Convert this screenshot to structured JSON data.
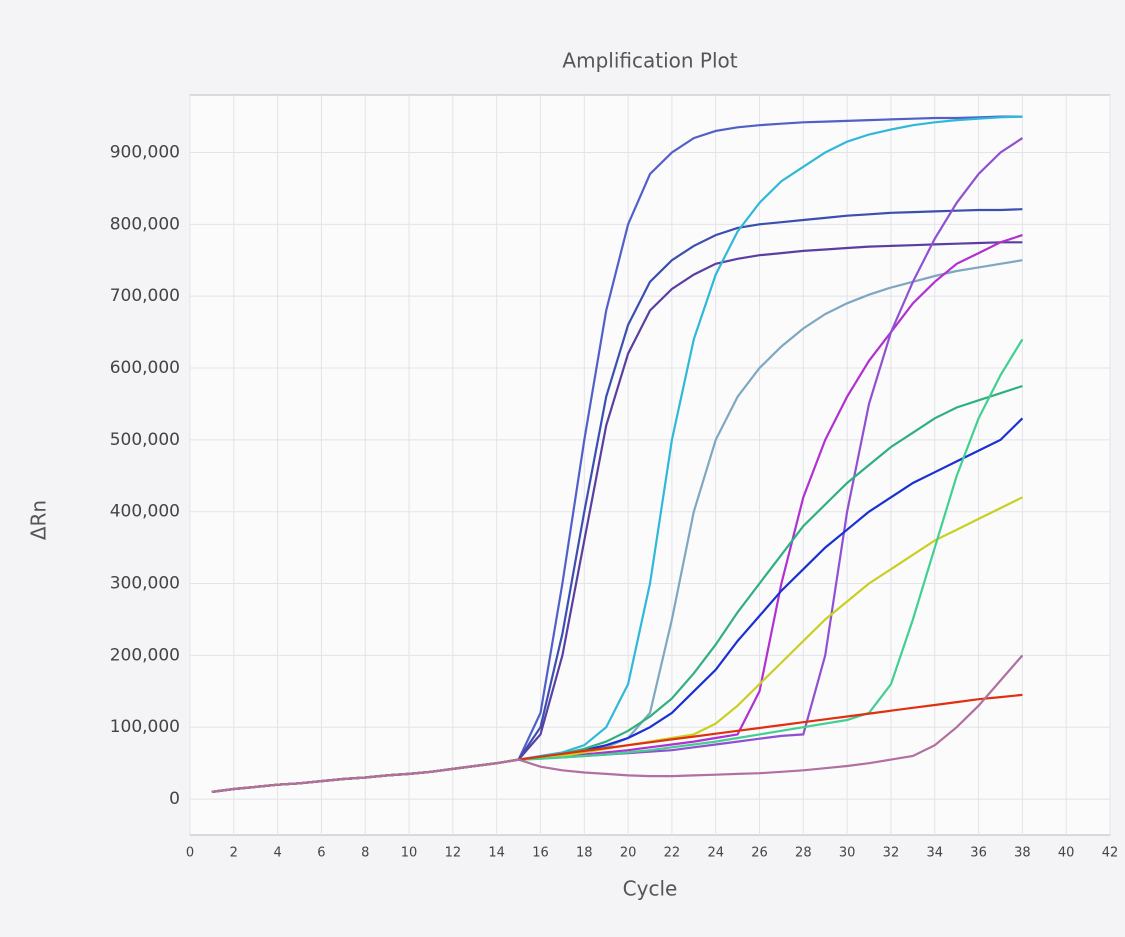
{
  "chart_data": {
    "type": "line",
    "title": "Amplification Plot",
    "x_label": "Cycle",
    "y_label": "ΔRn",
    "xlim": [
      0,
      42
    ],
    "xticks": [
      0,
      2,
      4,
      6,
      8,
      10,
      12,
      14,
      16,
      18,
      20,
      22,
      24,
      26,
      28,
      30,
      32,
      34,
      36,
      38,
      40,
      42
    ],
    "ylim": [
      -50000,
      980000
    ],
    "yticks": [
      {
        "value": 0,
        "label": "0"
      },
      {
        "value": 100000,
        "label": "100,000"
      },
      {
        "value": 200000,
        "label": "200,000"
      },
      {
        "value": 300000,
        "label": "300,000"
      },
      {
        "value": 400000,
        "label": "400,000"
      },
      {
        "value": 500000,
        "label": "500,000"
      },
      {
        "value": 600000,
        "label": "600,000"
      },
      {
        "value": 700000,
        "label": "700,000"
      },
      {
        "value": 800000,
        "label": "800,000"
      },
      {
        "value": 900000,
        "label": "900,000"
      }
    ],
    "grid": true,
    "x": [
      1,
      2,
      3,
      4,
      5,
      6,
      7,
      8,
      9,
      10,
      11,
      12,
      13,
      14,
      15,
      16,
      17,
      18,
      19,
      20,
      21,
      22,
      23,
      24,
      25,
      26,
      27,
      28,
      29,
      30,
      31,
      32,
      33,
      34,
      35,
      36,
      37,
      38
    ],
    "series": [
      {
        "color": "#5060c8",
        "values": [
          10000,
          14000,
          17000,
          20000,
          22000,
          25000,
          28000,
          30000,
          33000,
          35000,
          38000,
          42000,
          46000,
          50000,
          55000,
          120000,
          300000,
          500000,
          680000,
          800000,
          870000,
          900000,
          920000,
          930000,
          935000,
          938000,
          940000,
          942000,
          943000,
          944000,
          945000,
          946000,
          947000,
          948000,
          948000,
          949000,
          950000,
          950000
        ]
      },
      {
        "color": "#3a4fb0",
        "values": [
          10000,
          14000,
          17000,
          20000,
          22000,
          25000,
          28000,
          30000,
          33000,
          35000,
          38000,
          42000,
          46000,
          50000,
          55000,
          100000,
          230000,
          400000,
          560000,
          660000,
          720000,
          750000,
          770000,
          785000,
          795000,
          800000,
          803000,
          806000,
          809000,
          812000,
          814000,
          816000,
          817000,
          818000,
          819000,
          820000,
          820000,
          821000
        ]
      },
      {
        "color": "#5a3fa0",
        "values": [
          10000,
          14000,
          17000,
          20000,
          22000,
          25000,
          28000,
          30000,
          33000,
          35000,
          38000,
          42000,
          46000,
          50000,
          55000,
          90000,
          200000,
          360000,
          520000,
          620000,
          680000,
          710000,
          730000,
          745000,
          752000,
          757000,
          760000,
          763000,
          765000,
          767000,
          769000,
          770000,
          771000,
          772000,
          773000,
          774000,
          775000,
          775000
        ]
      },
      {
        "color": "#30b8d8",
        "values": [
          10000,
          14000,
          17000,
          20000,
          22000,
          25000,
          28000,
          30000,
          33000,
          35000,
          38000,
          42000,
          46000,
          50000,
          55000,
          60000,
          65000,
          75000,
          100000,
          160000,
          300000,
          500000,
          640000,
          730000,
          790000,
          830000,
          860000,
          880000,
          900000,
          915000,
          925000,
          932000,
          938000,
          942000,
          945000,
          947000,
          949000,
          950000
        ]
      },
      {
        "color": "#7fa8c0",
        "values": [
          10000,
          14000,
          17000,
          20000,
          22000,
          25000,
          28000,
          30000,
          33000,
          35000,
          38000,
          42000,
          46000,
          50000,
          55000,
          58000,
          62000,
          66000,
          72000,
          85000,
          120000,
          250000,
          400000,
          500000,
          560000,
          600000,
          630000,
          655000,
          675000,
          690000,
          702000,
          712000,
          720000,
          728000,
          735000,
          740000,
          745000,
          750000
        ]
      },
      {
        "color": "#b030d0",
        "values": [
          10000,
          14000,
          17000,
          20000,
          22000,
          25000,
          28000,
          30000,
          33000,
          35000,
          38000,
          42000,
          46000,
          50000,
          55000,
          57000,
          60000,
          62000,
          65000,
          68000,
          72000,
          76000,
          80000,
          85000,
          90000,
          150000,
          300000,
          420000,
          500000,
          560000,
          610000,
          650000,
          690000,
          720000,
          745000,
          760000,
          775000,
          785000
        ]
      },
      {
        "color": "#9050d0",
        "values": [
          10000,
          14000,
          17000,
          20000,
          22000,
          25000,
          28000,
          30000,
          33000,
          35000,
          38000,
          42000,
          46000,
          50000,
          55000,
          57000,
          58000,
          60000,
          62000,
          64000,
          66000,
          68000,
          72000,
          76000,
          80000,
          84000,
          88000,
          90000,
          200000,
          400000,
          550000,
          650000,
          720000,
          780000,
          830000,
          870000,
          900000,
          920000
        ]
      },
      {
        "color": "#1a30d0",
        "values": [
          10000,
          14000,
          17000,
          20000,
          22000,
          25000,
          28000,
          30000,
          33000,
          35000,
          38000,
          42000,
          46000,
          50000,
          55000,
          58000,
          62000,
          68000,
          75000,
          85000,
          100000,
          120000,
          150000,
          180000,
          220000,
          255000,
          290000,
          320000,
          350000,
          375000,
          400000,
          420000,
          440000,
          455000,
          470000,
          485000,
          500000,
          530000
        ]
      },
      {
        "color": "#30b080",
        "values": [
          10000,
          14000,
          17000,
          20000,
          22000,
          25000,
          28000,
          30000,
          33000,
          35000,
          38000,
          42000,
          46000,
          50000,
          55000,
          58000,
          63000,
          70000,
          80000,
          95000,
          115000,
          140000,
          175000,
          215000,
          260000,
          300000,
          340000,
          380000,
          410000,
          440000,
          465000,
          490000,
          510000,
          530000,
          545000,
          555000,
          565000,
          575000
        ]
      },
      {
        "color": "#c8d020",
        "values": [
          10000,
          14000,
          17000,
          20000,
          22000,
          25000,
          28000,
          30000,
          33000,
          35000,
          38000,
          42000,
          46000,
          50000,
          55000,
          56000,
          60000,
          65000,
          70000,
          75000,
          80000,
          85000,
          90000,
          105000,
          130000,
          160000,
          190000,
          220000,
          250000,
          275000,
          300000,
          320000,
          340000,
          360000,
          375000,
          390000,
          405000,
          420000
        ]
      },
      {
        "color": "#40d090",
        "values": [
          10000,
          14000,
          17000,
          20000,
          22000,
          25000,
          28000,
          30000,
          33000,
          35000,
          38000,
          42000,
          46000,
          50000,
          55000,
          56000,
          58000,
          60000,
          62000,
          65000,
          68000,
          72000,
          76000,
          80000,
          85000,
          90000,
          95000,
          100000,
          105000,
          110000,
          120000,
          160000,
          250000,
          350000,
          450000,
          530000,
          590000,
          640000
        ]
      },
      {
        "color": "#e03010",
        "values": [
          10000,
          14000,
          17000,
          20000,
          22000,
          25000,
          28000,
          30000,
          33000,
          35000,
          38000,
          42000,
          46000,
          50000,
          55000,
          59000,
          63000,
          67000,
          71000,
          75000,
          79000,
          83000,
          87000,
          91000,
          95000,
          99000,
          103000,
          107000,
          111000,
          115000,
          119000,
          123000,
          127000,
          131000,
          135000,
          139000,
          142000,
          145000
        ]
      },
      {
        "color": "#b070a0",
        "values": [
          10000,
          14000,
          17000,
          20000,
          22000,
          25000,
          28000,
          30000,
          33000,
          35000,
          38000,
          42000,
          46000,
          50000,
          55000,
          45000,
          40000,
          37000,
          35000,
          33000,
          32000,
          32000,
          33000,
          34000,
          35000,
          36000,
          38000,
          40000,
          43000,
          46000,
          50000,
          55000,
          60000,
          75000,
          100000,
          130000,
          165000,
          200000
        ]
      }
    ]
  }
}
